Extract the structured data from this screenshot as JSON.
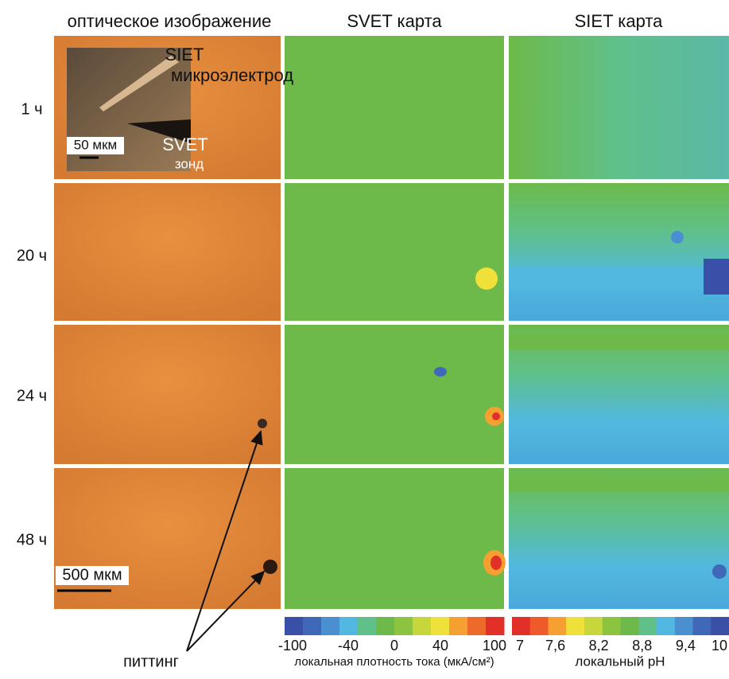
{
  "headers": [
    "оптическое изображение",
    "SVET карта",
    "SIET карта"
  ],
  "rows": [
    "1 ч",
    "20 ч",
    "24 ч",
    "48 ч"
  ],
  "inset": {
    "siet": "SIET",
    "electrode": "микроэлектрод",
    "scale": "50 мкм",
    "svet": "SVET",
    "probe": "зонд"
  },
  "scale_bar": "500 мкм",
  "annotation": "питтинг",
  "svet_colorbar": {
    "ticks": [
      "-100",
      "-40",
      "0",
      "40",
      "100"
    ],
    "label": "локальная плотность тока (мкА/см²)",
    "colors": [
      "#3a4fa8",
      "#3f68b8",
      "#4a8fd0",
      "#52b8e0",
      "#5fc08a",
      "#6dba4a",
      "#8cc43f",
      "#c7d63a",
      "#f0e03a",
      "#f5a030",
      "#ee6a2a",
      "#e03028"
    ]
  },
  "siet_colorbar": {
    "ticks": [
      "7",
      "7,6",
      "8,2",
      "8,8",
      "9,4",
      "10"
    ],
    "label": "локальный pH",
    "colors": [
      "#e03028",
      "#ee5a2a",
      "#f5a030",
      "#f0e03a",
      "#c7d63a",
      "#8cc43f",
      "#6dba4a",
      "#5fc08a",
      "#52b8e0",
      "#4a8fd0",
      "#3f68b8",
      "#3a4fa8"
    ]
  }
}
